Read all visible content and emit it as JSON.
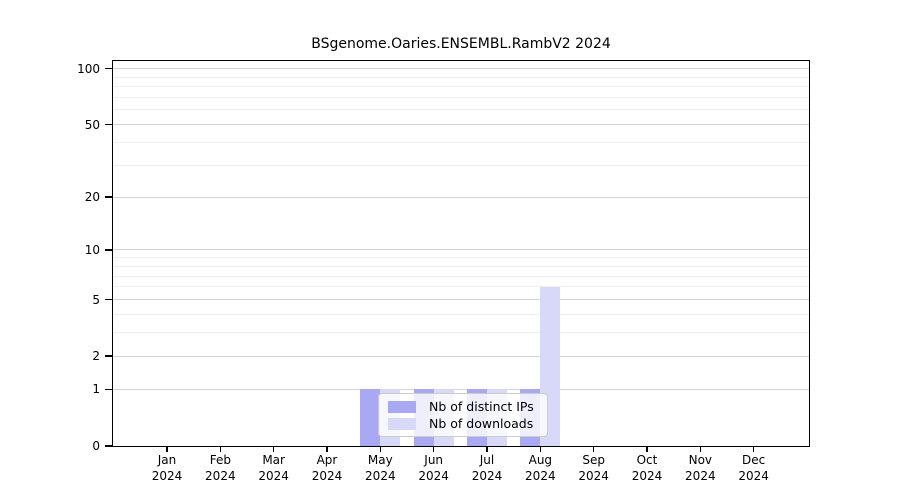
{
  "chart_data": {
    "type": "bar",
    "title": "BSgenome.Oaries.ENSEMBL.RambV2 2024",
    "categories": [
      "Jan",
      "Feb",
      "Mar",
      "Apr",
      "May",
      "Jun",
      "Jul",
      "Aug",
      "Sep",
      "Oct",
      "Nov",
      "Dec"
    ],
    "x_axis": {
      "year_label": "2024"
    },
    "series": [
      {
        "name": "Nb of distinct IPs",
        "color": "#a9a9f3",
        "values": [
          0,
          0,
          0,
          0,
          1,
          1,
          1,
          1,
          0,
          0,
          0,
          0
        ]
      },
      {
        "name": "Nb of downloads",
        "color": "#d8d8f8",
        "values": [
          0,
          0,
          0,
          0,
          1,
          1,
          1,
          6,
          0,
          0,
          0,
          0
        ]
      }
    ],
    "y_axis": {
      "scale": "log10(value+1)",
      "min_value": 0,
      "top_value": 110,
      "tick_values": [
        0,
        1,
        2,
        5,
        10,
        20,
        50,
        100
      ],
      "tick_labels": [
        "0",
        "1",
        "2",
        "5",
        "10",
        "20",
        "50",
        "100"
      ],
      "major_gridlines": [
        1,
        2,
        5,
        10,
        20,
        50,
        100
      ],
      "minor_gridlines": [
        3,
        4,
        6,
        7,
        8,
        9,
        30,
        40,
        60,
        70,
        80,
        90
      ]
    },
    "legend": {
      "position": "inside-bottom-center"
    },
    "grid": true
  },
  "colors": {
    "background": "#ffffff",
    "axis": "#000000",
    "major_grid": "#d3d3d3",
    "minor_grid": "#efefef",
    "legend_border": "#cccccc"
  }
}
